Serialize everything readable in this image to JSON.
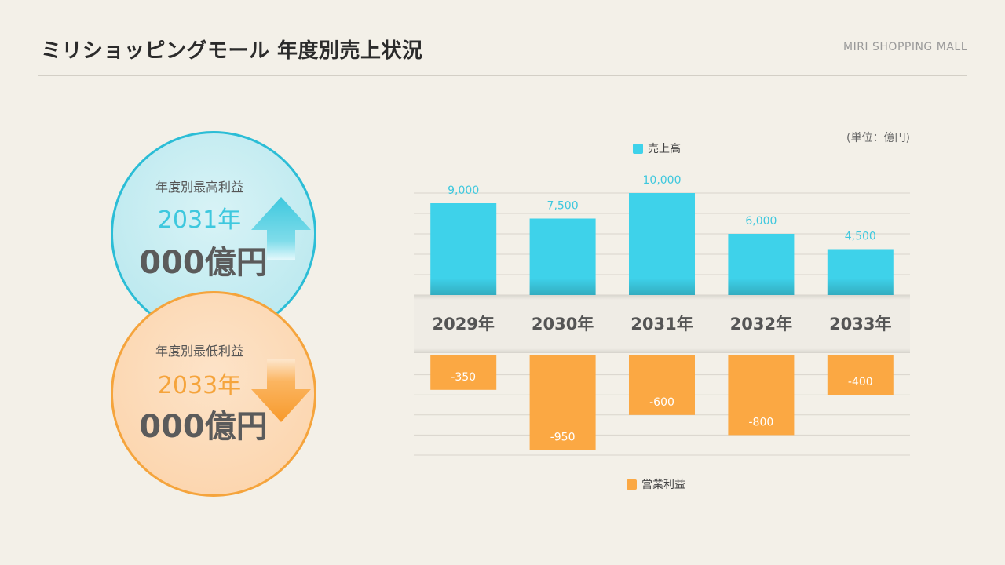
{
  "header": {
    "title": "ミリショッピングモール 年度別売上状況",
    "brand": "MIRI SHOPPING MALL"
  },
  "highlight_high": {
    "label": "年度別最高利益",
    "year": "2031年",
    "value": "000億円"
  },
  "highlight_low": {
    "label": "年度別最低利益",
    "year": "2033年",
    "value": "000億円"
  },
  "colors": {
    "sales": "#3ed2ea",
    "profit": "#fba843",
    "high_accent": "#3ec8de",
    "low_accent": "#f5a43c"
  },
  "icons": {
    "up": "arrow-up-icon",
    "down": "arrow-down-icon"
  },
  "chart_data": {
    "type": "bar",
    "unit": "(単位：億円)",
    "categories": [
      "2029年",
      "2030年",
      "2031年",
      "2032年",
      "2033年"
    ],
    "series": [
      {
        "name": "売上高",
        "values": [
          9000,
          7500,
          10000,
          6000,
          4500
        ],
        "labels": [
          "9,000",
          "7,500",
          "10,000",
          "6,000",
          "4,500"
        ],
        "ylim": [
          0,
          10000
        ]
      },
      {
        "name": "営業利益",
        "values": [
          -350,
          -950,
          -600,
          -800,
          -400
        ],
        "labels": [
          "-350",
          "-950",
          "-600",
          "-800",
          "-400"
        ],
        "ylim": [
          -1000,
          0
        ]
      }
    ]
  }
}
